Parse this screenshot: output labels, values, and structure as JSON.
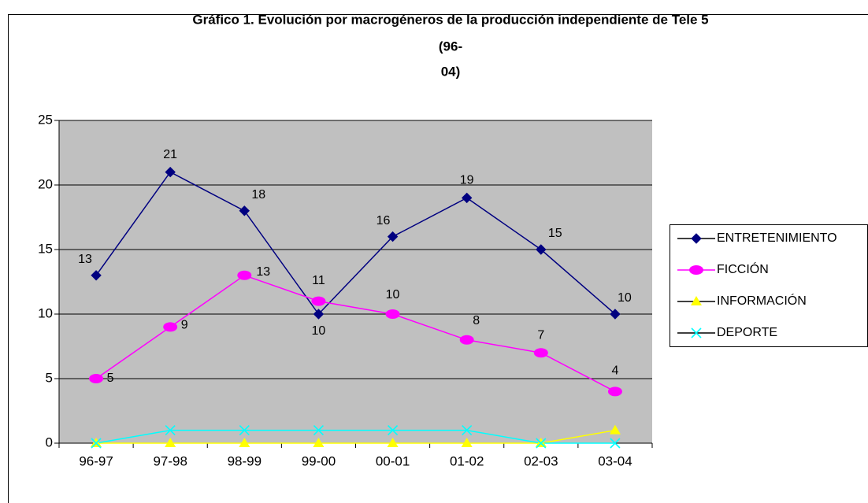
{
  "chart_data": {
    "type": "line",
    "title": [
      "Gráfico 1. Evolución por macrogéneros de la producción independiente de Tele 5",
      "(96-",
      "04)"
    ],
    "categories": [
      "96-97",
      "97-98",
      "98-99",
      "99-00",
      "00-01",
      "01-02",
      "02-03",
      "03-04"
    ],
    "series": [
      {
        "name": "ENTRETENIMIENTO",
        "color": "#000080",
        "marker": "diamond",
        "labels": true,
        "values": [
          13,
          21,
          18,
          10,
          16,
          19,
          15,
          10
        ]
      },
      {
        "name": "FICCIÓN",
        "color": "#ff00ff",
        "marker": "oval",
        "labels": true,
        "values": [
          5,
          9,
          13,
          11,
          10,
          8,
          7,
          4
        ]
      },
      {
        "name": "INFORMACIÓN",
        "color": "#ffff00",
        "marker": "triangle",
        "labels": false,
        "values": [
          0,
          0,
          0,
          0,
          0,
          0,
          0,
          1
        ]
      },
      {
        "name": "DEPORTE",
        "color": "#00ffff",
        "marker": "x",
        "labels": false,
        "values": [
          0,
          1,
          1,
          1,
          1,
          1,
          0,
          0
        ]
      }
    ],
    "ylim": [
      0,
      25
    ],
    "yticks": [
      0,
      5,
      10,
      15,
      20,
      25
    ],
    "grid": true,
    "legend": "right"
  }
}
